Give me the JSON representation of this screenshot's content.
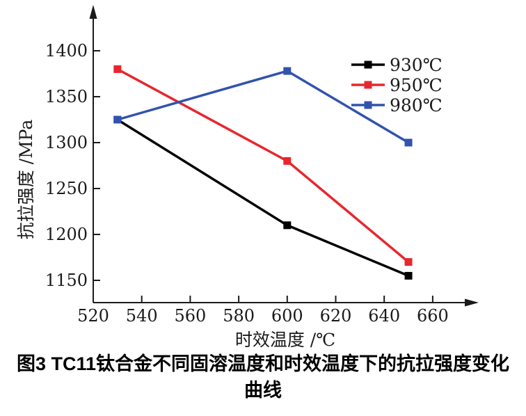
{
  "figure": {
    "caption_line1": "图3  TC11钛合金不同固溶温度和时效温度下的抗拉强度变化",
    "caption_line2": "曲线"
  },
  "chart_data": {
    "type": "line",
    "title": "",
    "xlabel": "时效温度 /℃",
    "ylabel": "抗拉强度 /MPa",
    "x": [
      530,
      600,
      650
    ],
    "series": [
      {
        "name": "930℃",
        "color": "#000000",
        "values": [
          1325,
          1210,
          1155
        ]
      },
      {
        "name": "950℃",
        "color": "#e8262e",
        "values": [
          1380,
          1280,
          1170
        ]
      },
      {
        "name": "980℃",
        "color": "#3253ad",
        "values": [
          1325,
          1378,
          1300
        ]
      }
    ],
    "x_ticks": [
      520,
      540,
      560,
      580,
      600,
      620,
      640,
      660
    ],
    "y_ticks": [
      1150,
      1200,
      1250,
      1300,
      1350,
      1400
    ],
    "xlim": [
      520,
      675
    ],
    "ylim": [
      1125,
      1445
    ],
    "grid": false,
    "marker": "square",
    "legend_position": "top-right",
    "legend_frame": false,
    "axis_color": "#1a1a1a"
  }
}
